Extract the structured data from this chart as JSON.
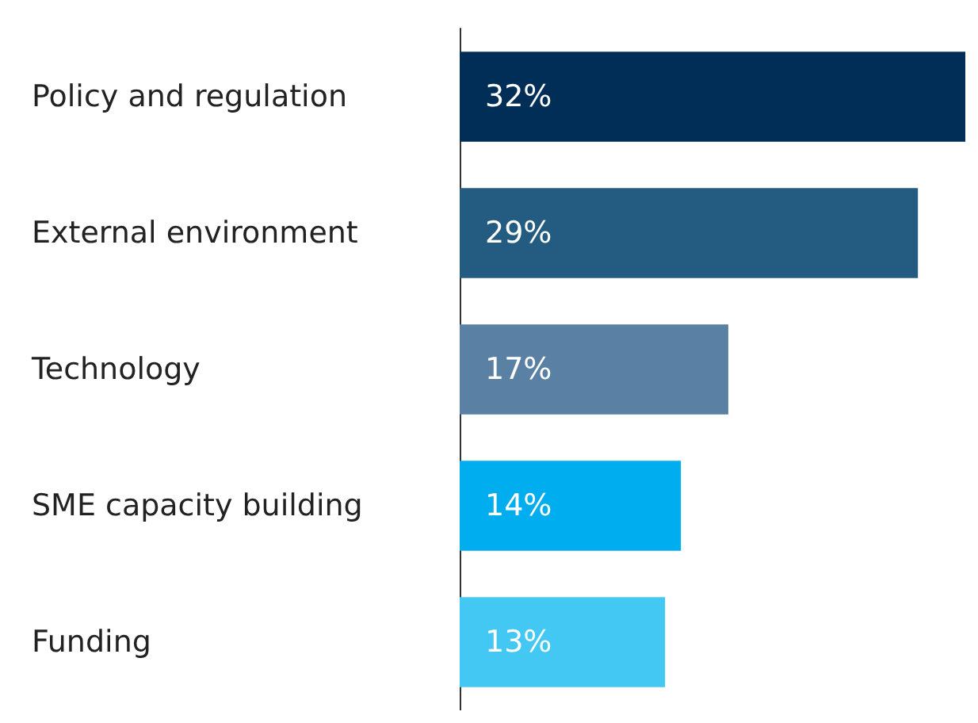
{
  "chart_data": {
    "type": "bar",
    "orientation": "horizontal",
    "categories": [
      "Policy and regulation",
      "External environment",
      "Technology",
      "SME capacity building",
      "Funding"
    ],
    "values": [
      32,
      29,
      17,
      14,
      13
    ],
    "colors": [
      "#002e57",
      "#245b80",
      "#5a80a3",
      "#00adef",
      "#43c7f3"
    ],
    "value_labels": [
      "32%",
      "29%",
      "17%",
      "14%",
      "13%"
    ],
    "grid": false
  }
}
